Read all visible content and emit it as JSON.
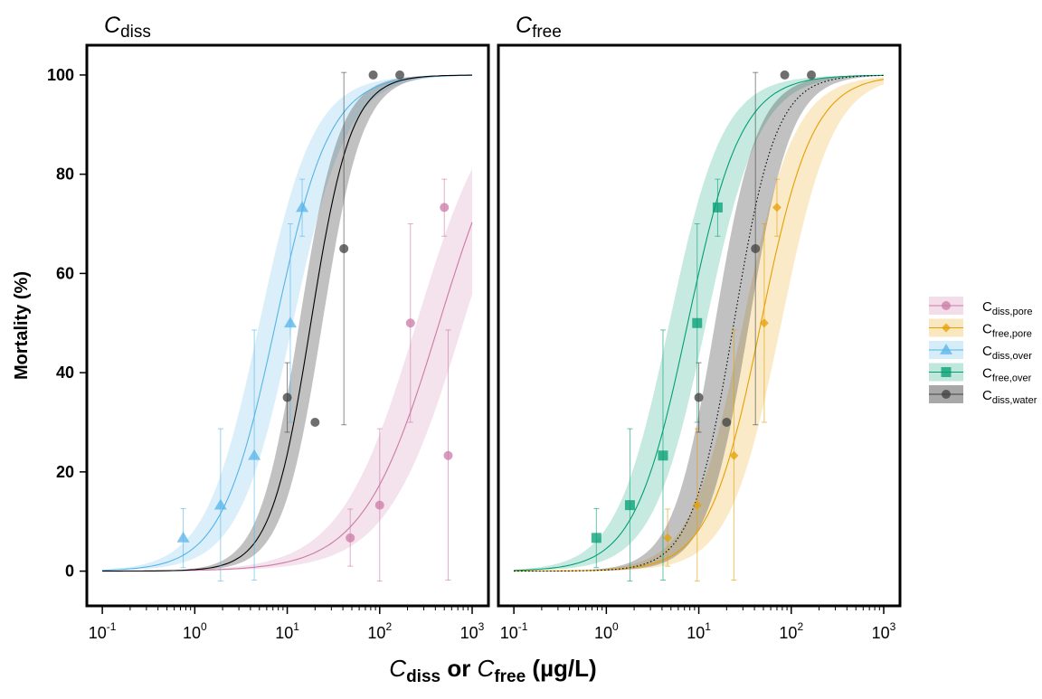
{
  "chart_data": {
    "type": "scatter",
    "y_axis": {
      "label": "Mortality (%)",
      "ylim": [
        -7,
        106
      ],
      "ticks": [
        0,
        20,
        40,
        60,
        80,
        100
      ]
    },
    "x_axis": {
      "scale": "log10",
      "xlim": [
        0.068,
        1500
      ],
      "ticks": [
        {
          "value": 0.1,
          "base": "10",
          "exp": "-1"
        },
        {
          "value": 1,
          "base": "10",
          "exp": "0"
        },
        {
          "value": 10,
          "base": "10",
          "exp": "1"
        },
        {
          "value": 100,
          "base": "10",
          "exp": "2"
        },
        {
          "value": 1000,
          "base": "10",
          "exp": "3"
        }
      ],
      "label": {
        "part1_italic": "C",
        "part1_sub": "diss",
        "middle": " or ",
        "part2_italic": "C",
        "part2_sub": "free",
        "unit": " (µg/L)"
      }
    },
    "legend": {
      "placement": "right",
      "entries": [
        {
          "key": "diss_pore",
          "main": "C",
          "sub": "diss,pore"
        },
        {
          "key": "free_pore",
          "main": "C",
          "sub": "free,pore"
        },
        {
          "key": "diss_over",
          "main": "C",
          "sub": "diss,over"
        },
        {
          "key": "free_over",
          "main": "C",
          "sub": "free,over"
        },
        {
          "key": "diss_water",
          "main": "C",
          "sub": "diss,water"
        }
      ]
    },
    "colors": {
      "diss_pore": "#cc79a7",
      "free_pore": "#e69f00",
      "diss_over": "#56b4e9",
      "free_over": "#009e73",
      "diss_water": "#3f3f3f"
    },
    "panels": [
      {
        "title_main": "C",
        "title_sub": "diss",
        "series": [
          {
            "key": "diss_pore",
            "marker": "circle",
            "points": [
              {
                "x": 48,
                "y": 6.7,
                "lo": 1,
                "hi": 12.5
              },
              {
                "x": 100,
                "y": 13.3,
                "lo": -2,
                "hi": 28.7
              },
              {
                "x": 215,
                "y": 50,
                "lo": 30,
                "hi": 70
              },
              {
                "x": 500,
                "y": 73.3,
                "lo": 67.5,
                "hi": 79
              },
              {
                "x": 550,
                "y": 23.3,
                "lo": -1.8,
                "hi": 48.6
              }
            ],
            "fit": {
              "ec50": 440,
              "slope": 1.05,
              "band_lo_ec50": 800,
              "band_hi_ec50": 250
            }
          },
          {
            "key": "diss_over",
            "marker": "triangle",
            "points": [
              {
                "x": 0.75,
                "y": 6.7,
                "lo": 0.7,
                "hi": 12.6
              },
              {
                "x": 1.9,
                "y": 13.3,
                "lo": -2,
                "hi": 28.7
              },
              {
                "x": 4.4,
                "y": 23.3,
                "lo": -1.8,
                "hi": 48.6
              },
              {
                "x": 10.8,
                "y": 50,
                "lo": 30,
                "hi": 70
              },
              {
                "x": 14.5,
                "y": 73.3,
                "lo": 67.5,
                "hi": 79
              }
            ],
            "fit": {
              "ec50": 7.5,
              "slope": 1.48,
              "band_lo_ec50": 11.5,
              "band_hi_ec50": 5.0
            }
          },
          {
            "key": "diss_water",
            "marker": "circle",
            "points": [
              {
                "x": 10,
                "y": 35,
                "lo": 28,
                "hi": 42
              },
              {
                "x": 20,
                "y": 30,
                "lo": 30,
                "hi": 30
              },
              {
                "x": 41,
                "y": 65,
                "lo": 29.5,
                "hi": 100.5
              },
              {
                "x": 85,
                "y": 100,
                "lo": 100,
                "hi": 100
              },
              {
                "x": 165,
                "y": 100,
                "lo": 100,
                "hi": 100
              }
            ],
            "fit": {
              "ec50": 18,
              "slope": 2.0,
              "band_lo_ec50": 24,
              "band_hi_ec50": 13.5
            }
          }
        ]
      },
      {
        "title_main": "C",
        "title_sub": "free",
        "series": [
          {
            "key": "free_pore",
            "marker": "diamond",
            "points": [
              {
                "x": 4.6,
                "y": 6.7,
                "lo": 1,
                "hi": 12.5
              },
              {
                "x": 9.6,
                "y": 13.3,
                "lo": -2,
                "hi": 28.7
              },
              {
                "x": 24,
                "y": 23.3,
                "lo": -1.8,
                "hi": 48.6
              },
              {
                "x": 51,
                "y": 50,
                "lo": 30,
                "hi": 70
              },
              {
                "x": 70,
                "y": 73.3,
                "lo": 67.5,
                "hi": 79
              }
            ],
            "fit": {
              "ec50": 47,
              "slope": 1.55,
              "band_lo_ec50": 78,
              "band_hi_ec50": 30
            }
          },
          {
            "key": "free_over",
            "marker": "square",
            "points": [
              {
                "x": 0.78,
                "y": 6.7,
                "lo": 0.7,
                "hi": 12.6
              },
              {
                "x": 1.8,
                "y": 13.3,
                "lo": -2,
                "hi": 28.7
              },
              {
                "x": 4.1,
                "y": 23.3,
                "lo": -1.8,
                "hi": 48.6
              },
              {
                "x": 9.6,
                "y": 50,
                "lo": 30,
                "hi": 70
              },
              {
                "x": 16,
                "y": 73.3,
                "lo": 67.5,
                "hi": 79
              }
            ],
            "fit": {
              "ec50": 7.6,
              "slope": 1.5,
              "band_lo_ec50": 12,
              "band_hi_ec50": 4.8
            }
          },
          {
            "key": "diss_water",
            "marker": "circle",
            "dotted_fit": true,
            "points": [
              {
                "x": 10,
                "y": 35,
                "lo": 28,
                "hi": 42
              },
              {
                "x": 20,
                "y": 30,
                "lo": 30,
                "hi": 30
              },
              {
                "x": 41,
                "y": 65,
                "lo": 29.5,
                "hi": 100.5
              },
              {
                "x": 85,
                "y": 100,
                "lo": 100,
                "hi": 100
              },
              {
                "x": 165,
                "y": 100,
                "lo": 100,
                "hi": 100
              }
            ],
            "fit": {
              "ec50": 24,
              "slope": 1.9,
              "band_lo_ec50": 35,
              "band_hi_ec50": 15
            }
          }
        ]
      }
    ]
  }
}
